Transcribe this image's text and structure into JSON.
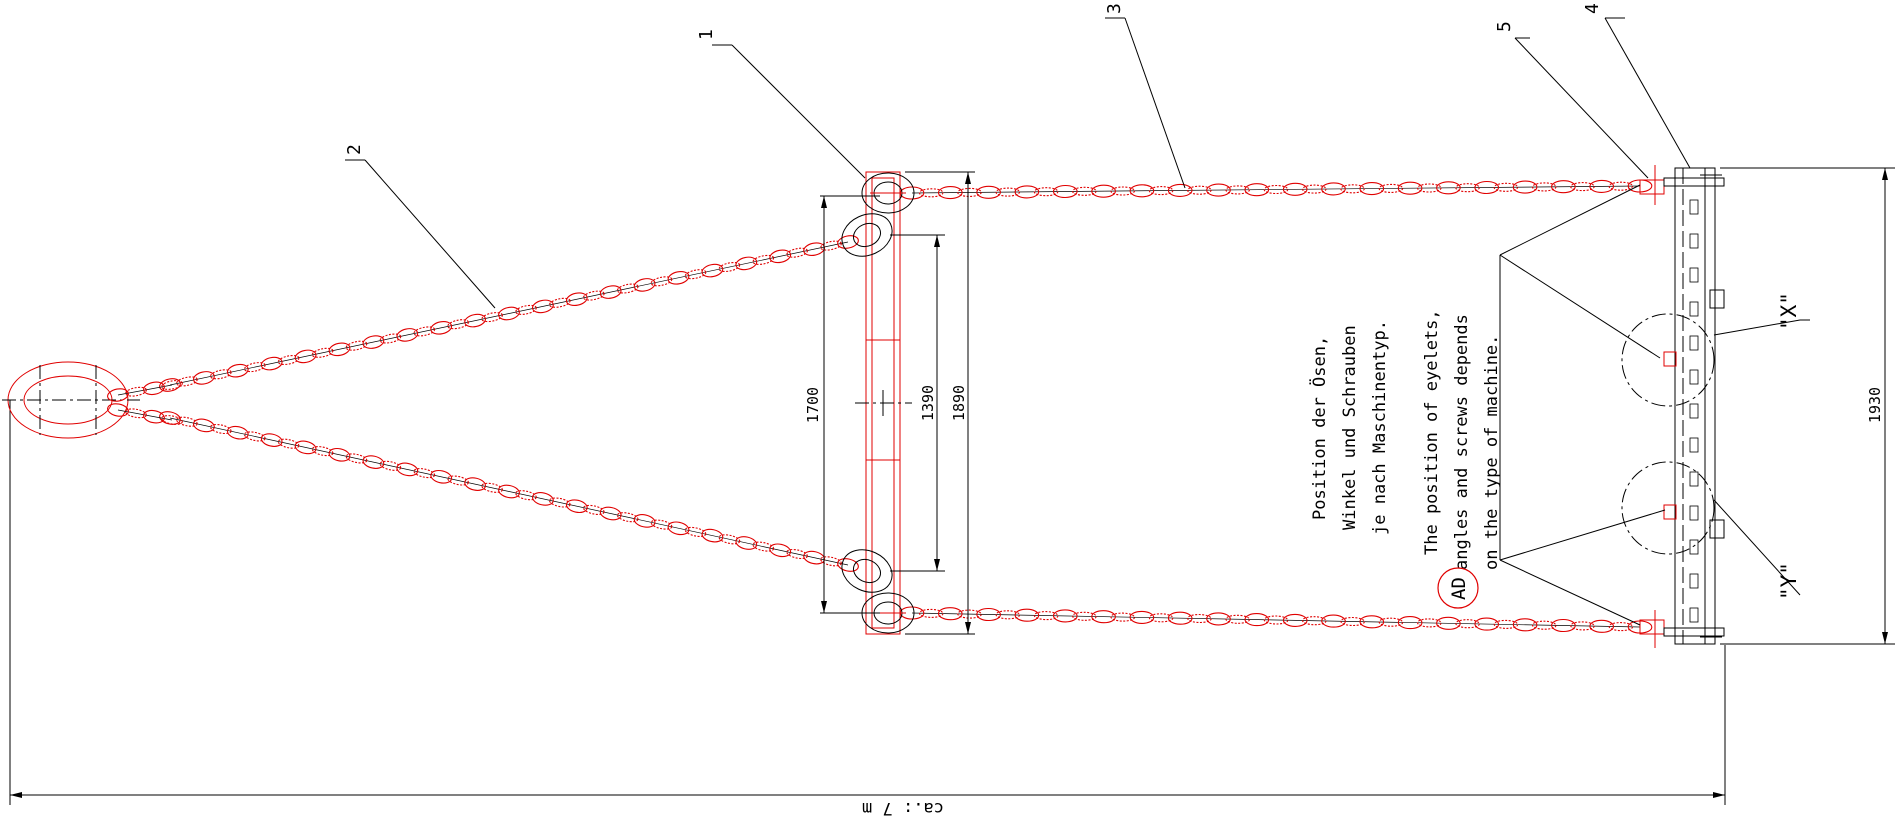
{
  "part_numbers": [
    "1",
    "2",
    "3",
    "4",
    "5"
  ],
  "dimensions": {
    "d1700": "1700",
    "d1390": "1390",
    "d1890": "1890",
    "d1930": "1930",
    "overall": "ca.: 7 m"
  },
  "views": {
    "x": "\"X\"",
    "y": "\"Y\""
  },
  "note": {
    "de": [
      "Position der Ösen,",
      "Winkel und Schrauben",
      "je nach Maschinentyp."
    ],
    "en": [
      "The position of eyelets,",
      "angles and screws depends",
      "on the type of machine."
    ],
    "marker": "AD"
  },
  "colors": {
    "line": "#000000",
    "chain": "#e00000",
    "background": "#ffffff"
  }
}
